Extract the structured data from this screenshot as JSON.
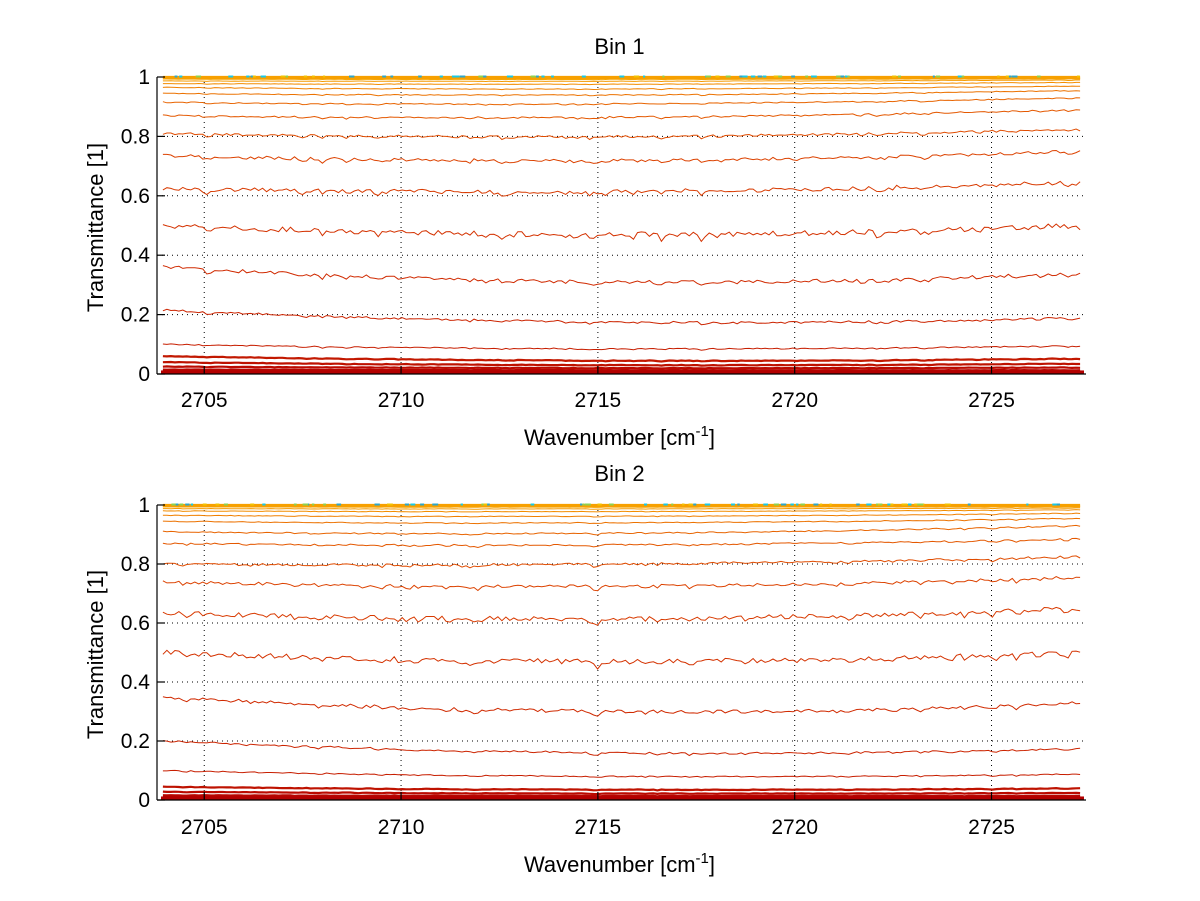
{
  "chart_data": [
    {
      "type": "line",
      "title": "Bin 1",
      "xlabel": "Wavenumber [cm",
      "xlabel_sup": "-1",
      "xlabel_suffix": "]",
      "ylabel": "Transmittance [1]",
      "xlim": [
        2703.8,
        2727.4
      ],
      "ylim": [
        0,
        1
      ],
      "x_ticks": [
        2705,
        2710,
        2715,
        2720,
        2725
      ],
      "x_tick_labels": [
        "2705",
        "2710",
        "2715",
        "2720",
        "2725"
      ],
      "y_ticks": [
        0,
        0.2,
        0.4,
        0.6,
        0.8,
        1
      ],
      "y_tick_labels": [
        "0",
        "0.2",
        "0.4",
        "0.6",
        "0.8",
        "1"
      ],
      "grid": true,
      "noise_seed": 7,
      "series": [
        {
          "start": 0.003,
          "end": 0.003,
          "mid": 0.003,
          "color": "#b30000"
        },
        {
          "start": 0.006,
          "end": 0.006,
          "mid": 0.006,
          "color": "#b40000"
        },
        {
          "start": 0.01,
          "end": 0.01,
          "mid": 0.01,
          "color": "#b60000"
        },
        {
          "start": 0.015,
          "end": 0.013,
          "mid": 0.013,
          "color": "#b80500"
        },
        {
          "start": 0.025,
          "end": 0.022,
          "mid": 0.02,
          "color": "#bb0a00"
        },
        {
          "start": 0.04,
          "end": 0.035,
          "mid": 0.03,
          "color": "#be1200"
        },
        {
          "start": 0.06,
          "end": 0.052,
          "mid": 0.045,
          "color": "#c21800"
        },
        {
          "start": 0.1,
          "end": 0.095,
          "mid": 0.085,
          "color": "#c71e00"
        },
        {
          "start": 0.215,
          "end": 0.19,
          "mid": 0.175,
          "color": "#cc2400"
        },
        {
          "start": 0.36,
          "end": 0.34,
          "mid": 0.31,
          "color": "#d02a00"
        },
        {
          "start": 0.5,
          "end": 0.5,
          "mid": 0.47,
          "color": "#d43200"
        },
        {
          "start": 0.625,
          "end": 0.645,
          "mid": 0.615,
          "color": "#d83a00"
        },
        {
          "start": 0.735,
          "end": 0.75,
          "mid": 0.72,
          "color": "#dc4200"
        },
        {
          "start": 0.81,
          "end": 0.825,
          "mid": 0.8,
          "color": "#e04c00"
        },
        {
          "start": 0.87,
          "end": 0.89,
          "mid": 0.865,
          "color": "#e45800"
        },
        {
          "start": 0.915,
          "end": 0.93,
          "mid": 0.91,
          "color": "#e86400"
        },
        {
          "start": 0.945,
          "end": 0.955,
          "mid": 0.94,
          "color": "#ec7200"
        },
        {
          "start": 0.965,
          "end": 0.97,
          "mid": 0.96,
          "color": "#f08000"
        },
        {
          "start": 0.978,
          "end": 0.982,
          "mid": 0.976,
          "color": "#f38d00"
        },
        {
          "start": 0.987,
          "end": 0.99,
          "mid": 0.986,
          "color": "#f59a00"
        },
        {
          "start": 0.993,
          "end": 0.995,
          "mid": 0.992,
          "color": "#f7a800"
        },
        {
          "start": 0.997,
          "end": 0.998,
          "mid": 0.996,
          "color": "#f9b500"
        }
      ],
      "top_fringe_colors": [
        "#19c8e6",
        "#2ea6c8",
        "#8fd14f",
        "#f2c200"
      ]
    },
    {
      "type": "line",
      "title": "Bin 2",
      "xlabel": "Wavenumber [cm",
      "xlabel_sup": "-1",
      "xlabel_suffix": "]",
      "ylabel": "Transmittance [1]",
      "xlim": [
        2703.8,
        2727.4
      ],
      "ylim": [
        0,
        1
      ],
      "x_ticks": [
        2705,
        2710,
        2715,
        2720,
        2725
      ],
      "x_tick_labels": [
        "2705",
        "2710",
        "2715",
        "2720",
        "2725"
      ],
      "y_ticks": [
        0,
        0.2,
        0.4,
        0.6,
        0.8,
        1
      ],
      "y_tick_labels": [
        "0",
        "0.2",
        "0.4",
        "0.6",
        "0.8",
        "1"
      ],
      "grid": true,
      "noise_seed": 13,
      "series": [
        {
          "start": 0.003,
          "end": 0.003,
          "mid": 0.003,
          "color": "#b30000"
        },
        {
          "start": 0.006,
          "end": 0.006,
          "mid": 0.006,
          "color": "#b40000"
        },
        {
          "start": 0.01,
          "end": 0.01,
          "mid": 0.01,
          "color": "#b60000"
        },
        {
          "start": 0.016,
          "end": 0.014,
          "mid": 0.014,
          "color": "#b80500"
        },
        {
          "start": 0.028,
          "end": 0.024,
          "mid": 0.022,
          "color": "#bb0a00"
        },
        {
          "start": 0.045,
          "end": 0.04,
          "mid": 0.035,
          "color": "#be1200"
        },
        {
          "start": 0.1,
          "end": 0.088,
          "mid": 0.08,
          "color": "#c71e00"
        },
        {
          "start": 0.2,
          "end": 0.175,
          "mid": 0.16,
          "color": "#cc2400"
        },
        {
          "start": 0.35,
          "end": 0.33,
          "mid": 0.3,
          "color": "#d02a00"
        },
        {
          "start": 0.5,
          "end": 0.5,
          "mid": 0.47,
          "color": "#d43200"
        },
        {
          "start": 0.635,
          "end": 0.65,
          "mid": 0.615,
          "color": "#d83a00"
        },
        {
          "start": 0.74,
          "end": 0.755,
          "mid": 0.725,
          "color": "#dc4200"
        },
        {
          "start": 0.8,
          "end": 0.825,
          "mid": 0.8,
          "color": "#e04c00"
        },
        {
          "start": 0.87,
          "end": 0.885,
          "mid": 0.865,
          "color": "#e45800"
        },
        {
          "start": 0.91,
          "end": 0.93,
          "mid": 0.905,
          "color": "#e86400"
        },
        {
          "start": 0.945,
          "end": 0.955,
          "mid": 0.94,
          "color": "#ec7200"
        },
        {
          "start": 0.965,
          "end": 0.972,
          "mid": 0.962,
          "color": "#f08000"
        },
        {
          "start": 0.98,
          "end": 0.984,
          "mid": 0.978,
          "color": "#f38d00"
        },
        {
          "start": 0.988,
          "end": 0.99,
          "mid": 0.987,
          "color": "#f59a00"
        },
        {
          "start": 0.994,
          "end": 0.995,
          "mid": 0.993,
          "color": "#f7a800"
        },
        {
          "start": 0.997,
          "end": 0.998,
          "mid": 0.996,
          "color": "#f9b500"
        }
      ],
      "top_fringe_colors": [
        "#19c8e6",
        "#2ea6c8",
        "#8fd14f",
        "#f2c200"
      ]
    }
  ]
}
